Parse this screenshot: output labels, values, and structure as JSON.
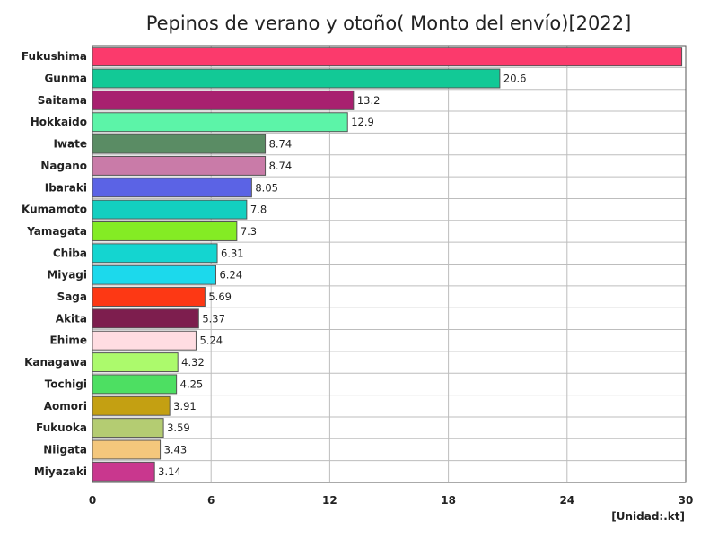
{
  "chart_data": {
    "type": "bar",
    "orientation": "horizontal",
    "title": "Pepinos de verano y otoño( Monto del envío)[2022]",
    "unit_label": "[Unidad:.kt]",
    "xlim": [
      0,
      30
    ],
    "xticks": [
      "0",
      "6",
      "12",
      "18",
      "24",
      "30"
    ],
    "grid": true,
    "categories": [
      "Fukushima",
      "Gunma",
      "Saitama",
      "Hokkaido",
      "Iwate",
      "Nagano",
      "Ibaraki",
      "Kumamoto",
      "Yamagata",
      "Chiba",
      "Miyagi",
      "Saga",
      "Akita",
      "Ehime",
      "Kanagawa",
      "Tochigi",
      "Aomori",
      "Fukuoka",
      "Niigata",
      "Miyazaki"
    ],
    "values": [
      29.8,
      20.6,
      13.2,
      12.9,
      8.74,
      8.74,
      8.05,
      7.8,
      7.3,
      6.31,
      6.24,
      5.69,
      5.37,
      5.24,
      4.32,
      4.25,
      3.91,
      3.59,
      3.43,
      3.14
    ],
    "value_labels": [
      "",
      "20.6",
      "13.2",
      "12.9",
      "8.74",
      "8.74",
      "8.05",
      "7.8",
      "7.3",
      "6.31",
      "6.24",
      "5.69",
      "5.37",
      "5.24",
      "4.32",
      "4.25",
      "3.91",
      "3.59",
      "3.43",
      "3.14"
    ],
    "colors": [
      "#fb3a6c",
      "#12c996",
      "#a8206f",
      "#5cf4a8",
      "#5a8c64",
      "#c97ba8",
      "#5b63e5",
      "#13cfc0",
      "#84ec24",
      "#14d5d0",
      "#1cd9ec",
      "#fd3814",
      "#7d1e4e",
      "#ffdde2",
      "#acfa6c",
      "#4ddf62",
      "#c4a012",
      "#b4cc72",
      "#f4c77c",
      "#c9378e"
    ]
  }
}
